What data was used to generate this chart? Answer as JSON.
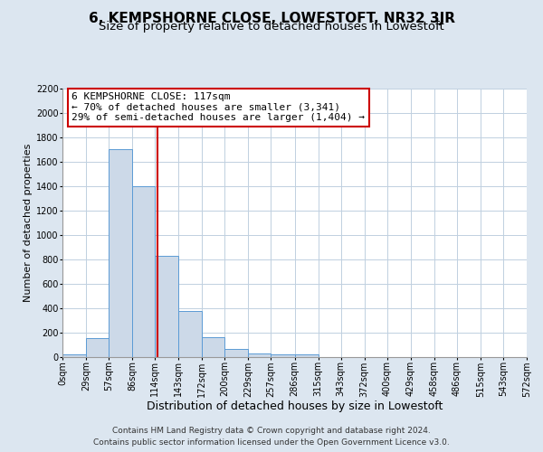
{
  "title": "6, KEMPSHORNE CLOSE, LOWESTOFT, NR32 3JR",
  "subtitle": "Size of property relative to detached houses in Lowestoft",
  "xlabel": "Distribution of detached houses by size in Lowestoft",
  "ylabel": "Number of detached properties",
  "bar_edges": [
    0,
    29,
    57,
    86,
    114,
    143,
    172,
    200,
    229,
    257,
    286,
    315,
    343,
    372,
    400,
    429,
    458,
    486,
    515,
    543,
    572
  ],
  "bar_heights": [
    20,
    155,
    1700,
    1400,
    825,
    380,
    165,
    70,
    30,
    20,
    20,
    0,
    0,
    0,
    0,
    0,
    0,
    0,
    0,
    0
  ],
  "bar_color": "#ccd9e8",
  "bar_edge_color": "#5b9bd5",
  "vline_x": 117,
  "vline_color": "#cc0000",
  "annotation_text_line1": "6 KEMPSHORNE CLOSE: 117sqm",
  "annotation_text_line2": "← 70% of detached houses are smaller (3,341)",
  "annotation_text_line3": "29% of semi-detached houses are larger (1,404) →",
  "annotation_box_color": "#ffffff",
  "annotation_border_color": "#cc0000",
  "tick_labels": [
    "0sqm",
    "29sqm",
    "57sqm",
    "86sqm",
    "114sqm",
    "143sqm",
    "172sqm",
    "200sqm",
    "229sqm",
    "257sqm",
    "286sqm",
    "315sqm",
    "343sqm",
    "372sqm",
    "400sqm",
    "429sqm",
    "458sqm",
    "486sqm",
    "515sqm",
    "543sqm",
    "572sqm"
  ],
  "ylim": [
    0,
    2200
  ],
  "yticks": [
    0,
    200,
    400,
    600,
    800,
    1000,
    1200,
    1400,
    1600,
    1800,
    2000,
    2200
  ],
  "background_color": "#dce6f0",
  "plot_bg_color": "#ffffff",
  "footer_line1": "Contains HM Land Registry data © Crown copyright and database right 2024.",
  "footer_line2": "Contains public sector information licensed under the Open Government Licence v3.0.",
  "title_fontsize": 11,
  "subtitle_fontsize": 9.5,
  "xlabel_fontsize": 9,
  "ylabel_fontsize": 8,
  "tick_fontsize": 7,
  "footer_fontsize": 6.5,
  "annotation_fontsize": 8,
  "grid_color": "#c0d0e0"
}
